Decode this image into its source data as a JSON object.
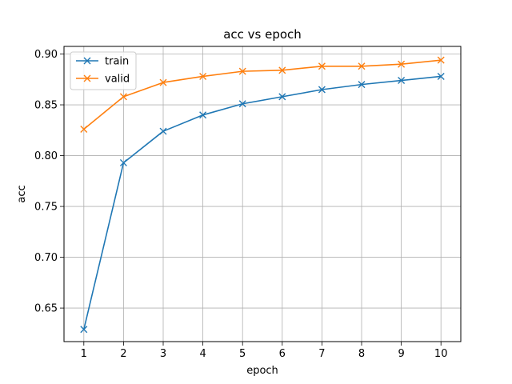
{
  "chart_data": {
    "type": "line",
    "title": "acc vs epoch",
    "xlabel": "epoch",
    "ylabel": "acc",
    "x": [
      1,
      2,
      3,
      4,
      5,
      6,
      7,
      8,
      9,
      10
    ],
    "xlim": [
      0.5,
      10.5
    ],
    "ylim": [
      0.617,
      0.9075
    ],
    "xticks": [
      1,
      2,
      3,
      4,
      5,
      6,
      7,
      8,
      9,
      10
    ],
    "yticks": [
      0.65,
      0.7,
      0.75,
      0.8,
      0.85,
      0.9
    ],
    "ytick_labels": [
      "0.65",
      "0.70",
      "0.75",
      "0.80",
      "0.85",
      "0.90"
    ],
    "grid": true,
    "legend_position": "top-left",
    "marker": "x",
    "series": [
      {
        "name": "train",
        "color": "#1f77b4",
        "values": [
          0.629,
          0.793,
          0.824,
          0.84,
          0.851,
          0.858,
          0.865,
          0.87,
          0.874,
          0.878
        ]
      },
      {
        "name": "valid",
        "color": "#ff7f0e",
        "values": [
          0.826,
          0.858,
          0.872,
          0.878,
          0.883,
          0.884,
          0.888,
          0.888,
          0.89,
          0.894
        ]
      }
    ]
  }
}
